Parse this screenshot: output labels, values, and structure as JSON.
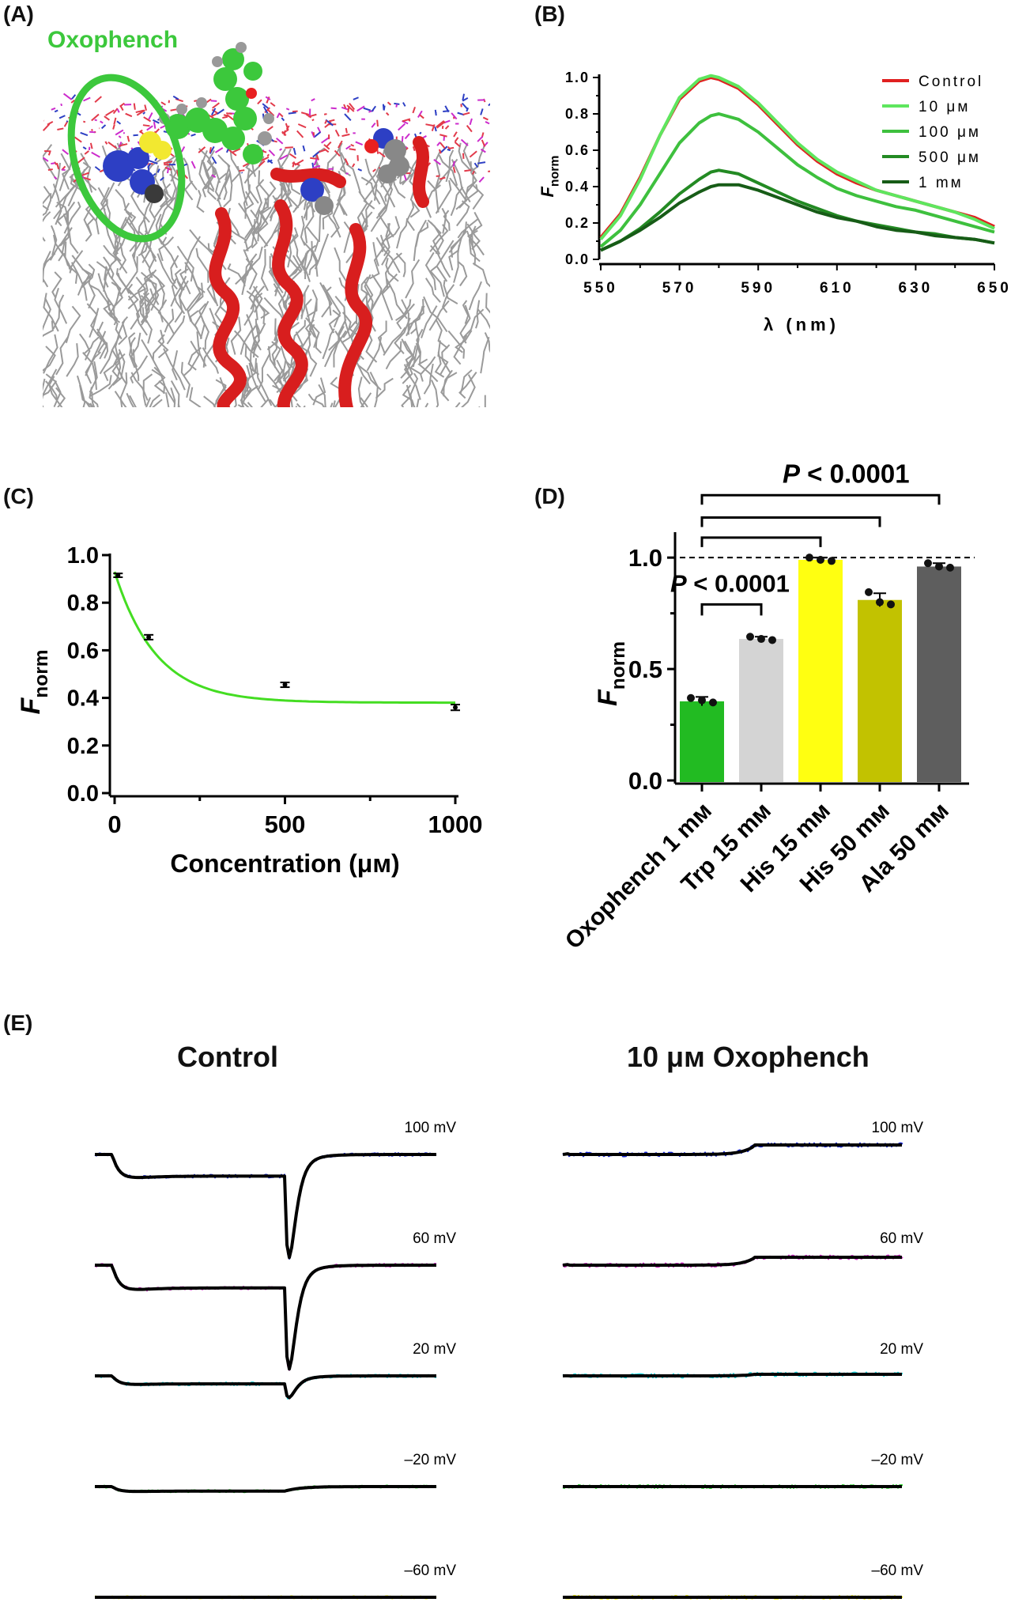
{
  "panels": {
    "a": "(A)",
    "b": "(B)",
    "c": "(C)",
    "d": "(D)",
    "e": "(E)"
  },
  "panel_a": {
    "molecule_label": "Oxophench",
    "colors": {
      "label": "#3cc83c",
      "helix": "#d81e1e",
      "lipid": "#9a9a9a",
      "headgroup_red": "#e23a4a",
      "headgroup_blue": "#2d3fc4",
      "headgroup_magenta": "#cc2ccc"
    }
  },
  "chart_data": [
    {
      "id": "B",
      "type": "line",
      "xlabel": "λ (nm)",
      "ylabel": "F",
      "ylabel_sub": "norm",
      "xlim": [
        550,
        650
      ],
      "ylim": [
        0,
        1.0
      ],
      "xticks": [
        "550",
        "570",
        "590",
        "610",
        "630",
        "650"
      ],
      "yticks": [
        "0.0",
        "0.2",
        "0.4",
        "0.6",
        "0.8",
        "1.0"
      ],
      "legend_position": "top-right",
      "x": [
        550,
        555,
        560,
        565,
        570,
        575,
        578,
        580,
        585,
        590,
        595,
        600,
        605,
        610,
        615,
        620,
        625,
        630,
        635,
        640,
        645,
        650
      ],
      "series": [
        {
          "name": "Control",
          "color": "#e02020",
          "values": [
            0.12,
            0.25,
            0.45,
            0.68,
            0.88,
            0.98,
            1.0,
            0.99,
            0.94,
            0.85,
            0.74,
            0.63,
            0.54,
            0.47,
            0.42,
            0.38,
            0.35,
            0.32,
            0.29,
            0.26,
            0.23,
            0.18
          ]
        },
        {
          "name": "10 μм",
          "color": "#5ee65e",
          "values": [
            0.11,
            0.24,
            0.44,
            0.68,
            0.89,
            0.99,
            1.01,
            1.0,
            0.95,
            0.86,
            0.75,
            0.64,
            0.55,
            0.48,
            0.43,
            0.38,
            0.35,
            0.32,
            0.29,
            0.26,
            0.22,
            0.17
          ]
        },
        {
          "name": "100 μм",
          "color": "#3ec03e",
          "values": [
            0.07,
            0.16,
            0.3,
            0.47,
            0.64,
            0.75,
            0.79,
            0.8,
            0.77,
            0.7,
            0.61,
            0.52,
            0.45,
            0.39,
            0.35,
            0.32,
            0.29,
            0.27,
            0.24,
            0.21,
            0.18,
            0.15
          ]
        },
        {
          "name": "500 μм",
          "color": "#238a23",
          "values": [
            0.05,
            0.1,
            0.17,
            0.26,
            0.36,
            0.44,
            0.48,
            0.49,
            0.47,
            0.42,
            0.37,
            0.32,
            0.28,
            0.24,
            0.21,
            0.19,
            0.17,
            0.15,
            0.14,
            0.12,
            0.11,
            0.09
          ]
        },
        {
          "name": "1 mм",
          "color": "#175c17",
          "values": [
            0.05,
            0.1,
            0.16,
            0.23,
            0.31,
            0.37,
            0.4,
            0.41,
            0.41,
            0.38,
            0.34,
            0.3,
            0.26,
            0.23,
            0.21,
            0.18,
            0.16,
            0.15,
            0.13,
            0.12,
            0.11,
            0.09
          ]
        }
      ]
    },
    {
      "id": "C",
      "type": "scatter",
      "xlabel": "Concentration (μм)",
      "ylabel": "F",
      "ylabel_sub": "norm",
      "xlim": [
        0,
        1000
      ],
      "ylim": [
        0,
        1.0
      ],
      "xticks": [
        "0",
        "500",
        "1000"
      ],
      "yticks": [
        "0.0",
        "0.2",
        "0.4",
        "0.6",
        "0.8",
        "1.0"
      ],
      "curve_color": "#44dd22",
      "points": [
        {
          "x": 10,
          "y": 0.915,
          "err": 0.008
        },
        {
          "x": 100,
          "y": 0.655,
          "err": 0.01
        },
        {
          "x": 500,
          "y": 0.455,
          "err": 0.01
        },
        {
          "x": 1000,
          "y": 0.36,
          "err": 0.012
        }
      ],
      "fit": {
        "model": "exponential decay",
        "y0": 0.93,
        "plateau": 0.38,
        "k": 0.0082
      }
    },
    {
      "id": "D",
      "type": "bar",
      "ylabel": "F",
      "ylabel_sub": "norm",
      "ylim": [
        0,
        1.1
      ],
      "yticks": [
        "0.0",
        "0.5",
        "1.0"
      ],
      "reference_line": 1.0,
      "categories": [
        "Oxophench 1 mм",
        "Trp 15 mм",
        "His 15 mм",
        "His 50 mм",
        "Ala 50 mм"
      ],
      "values": [
        0.355,
        0.635,
        0.99,
        0.81,
        0.96
      ],
      "errors": [
        0.02,
        0.01,
        0.01,
        0.03,
        0.015
      ],
      "colors": [
        "#22bb22",
        "#d4d4d4",
        "#ffff11",
        "#c2c200",
        "#5e5e5e"
      ],
      "points": [
        [
          0.37,
          0.36,
          0.35
        ],
        [
          0.645,
          0.635,
          0.63
        ],
        [
          1.0,
          0.99,
          0.985
        ],
        [
          0.845,
          0.8,
          0.79
        ],
        [
          0.975,
          0.96,
          0.955
        ]
      ],
      "significance": [
        {
          "label": "P < 0.0001",
          "from": 0,
          "to": 1
        },
        {
          "label": "P < 0.0001",
          "from": 0,
          "to": 4
        }
      ]
    }
  ],
  "panel_e": {
    "titles": {
      "left": "Control",
      "right": "10 μм  Oxophench"
    },
    "voltages": [
      "100 mV",
      "60 mV",
      "20 mV",
      "–20 mV",
      "–60 mV"
    ],
    "trace_colors": [
      "#1a2ad8",
      "#d030c8",
      "#22d8e0",
      "#22dd22",
      "#f0f000"
    ],
    "fit_color": "#000000"
  }
}
